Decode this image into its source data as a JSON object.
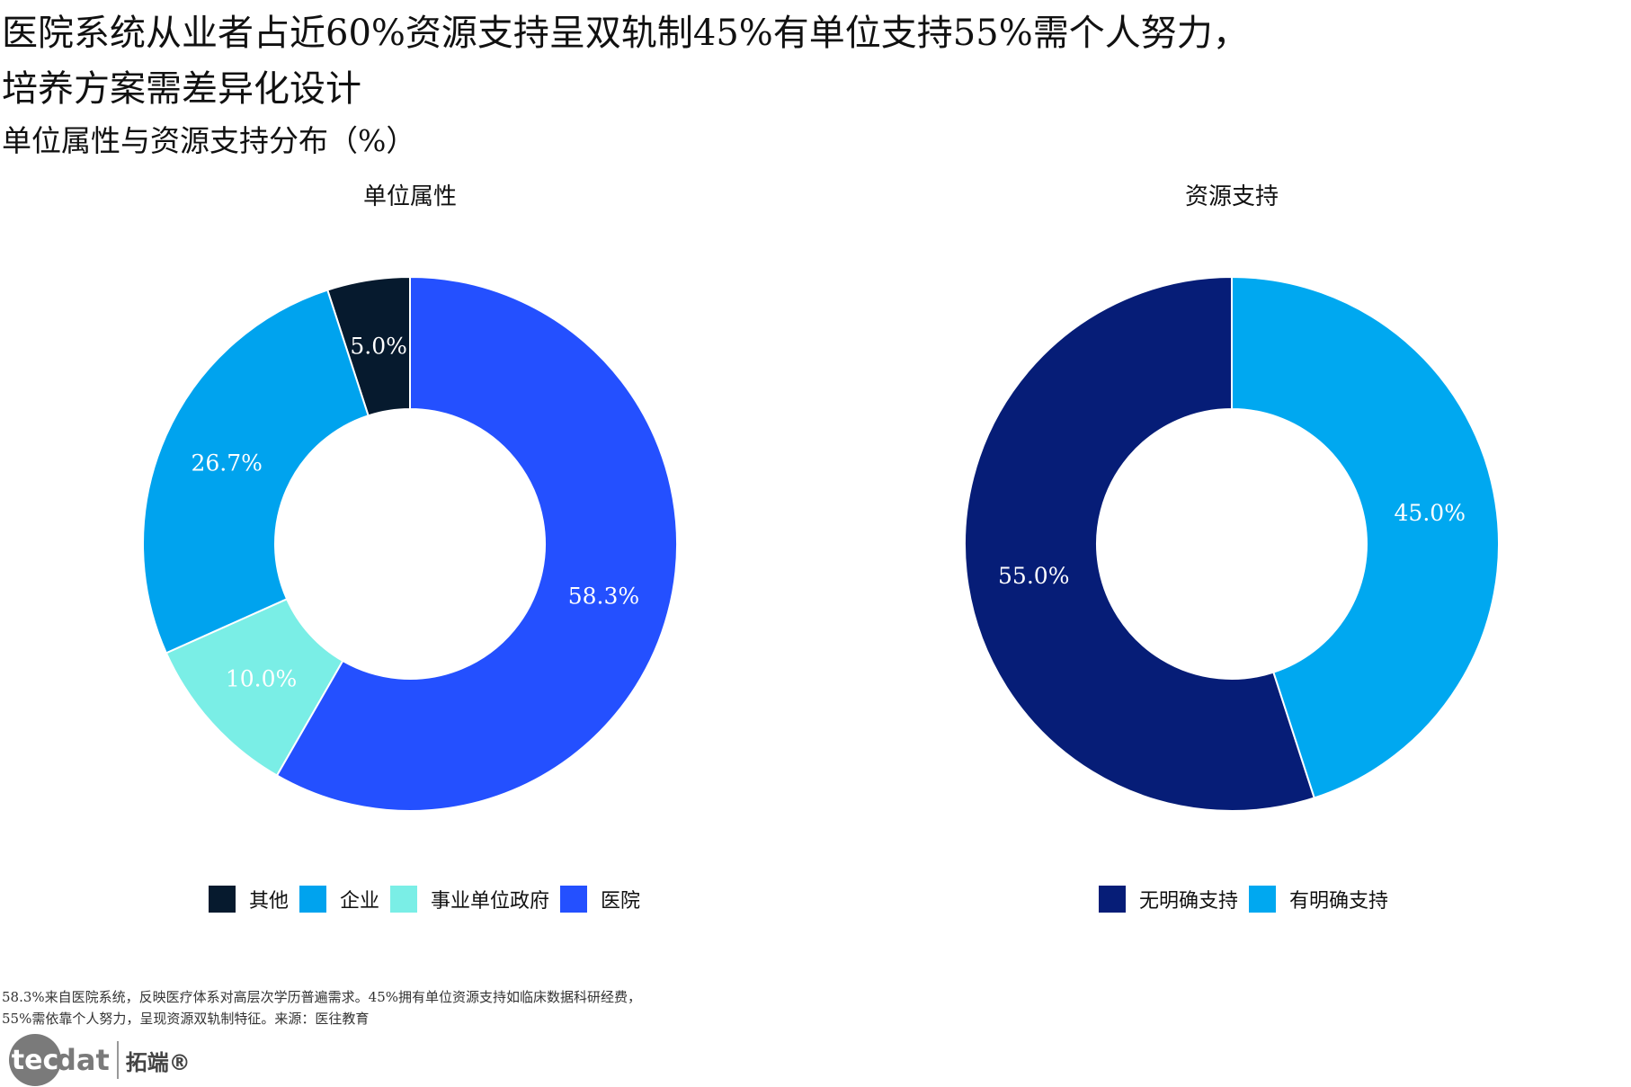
{
  "header": {
    "title_line1": "医院系统从业者占近60%资源支持呈双轨制45%有单位支持55%需个人努力，",
    "title_line2": "培养方案需差异化设计",
    "subtitle": "单位属性与资源支持分布（%）"
  },
  "chart_data": [
    {
      "type": "donut",
      "title": "单位属性",
      "categories": [
        "其他",
        "企业",
        "事业单位政府",
        "医院"
      ],
      "values": [
        5.0,
        26.7,
        10.0,
        58.3
      ],
      "labels": [
        "5.0%",
        "26.7%",
        "10.0%",
        "58.3%"
      ],
      "colors": [
        "#061a2e",
        "#00a3ee",
        "#7aeee6",
        "#2450ff"
      ],
      "legend_position": "bottom"
    },
    {
      "type": "donut",
      "title": "资源支持",
      "categories": [
        "无明确支持",
        "有明确支持"
      ],
      "values": [
        55.0,
        45.0
      ],
      "labels": [
        "55.0%",
        "45.0%"
      ],
      "colors": [
        "#061d77",
        "#00a8f0"
      ],
      "legend_position": "bottom"
    }
  ],
  "footer": {
    "note_line1": "58.3%来自医院系统，反映医疗体系对高层次学历普遍需求。45%拥有单位资源支持如临床数据科研经费，",
    "note_line2": "55%需依靠个人努力，呈现资源双轨制特征。来源：医往教育",
    "logo_mark": "tec",
    "logo_text": "dat",
    "logo_cn": "拓端®"
  }
}
